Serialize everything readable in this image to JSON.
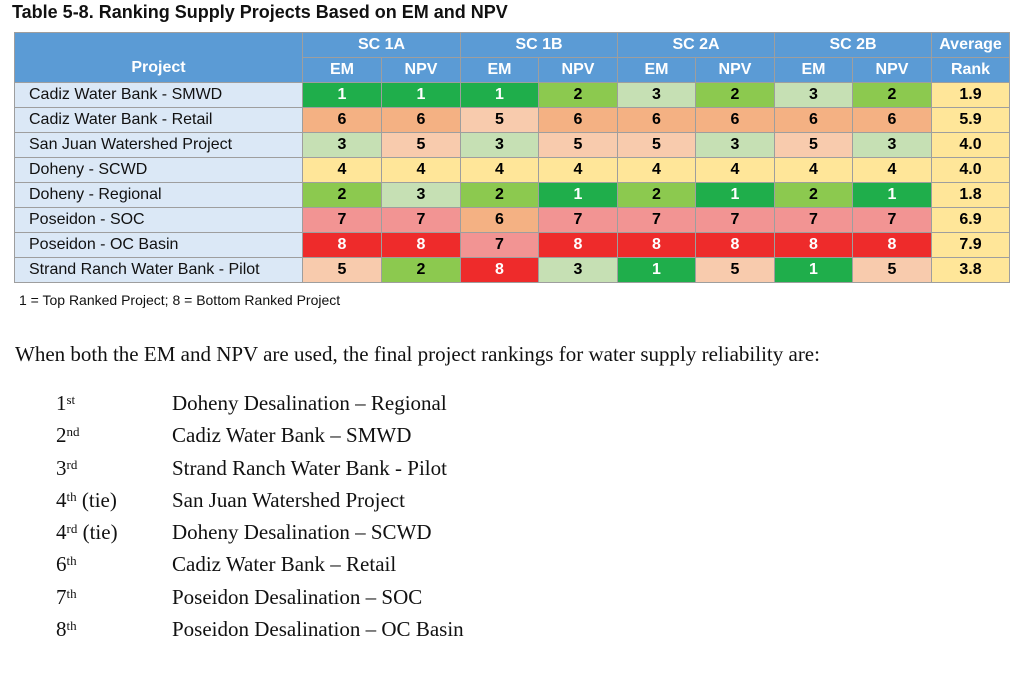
{
  "caption": "Table 5-8. Ranking Supply Projects Based on EM and NPV",
  "colors": {
    "header_blue": "#5b9bd5",
    "project_cell": "#dbe8f6",
    "rank_1": "#1fae4b",
    "rank_2": "#8cc94f",
    "rank_3": "#c6e0b4",
    "rank_4": "#ffe699",
    "rank_5": "#f8cbad",
    "rank_6": "#f4b183",
    "rank_7": "#f29493",
    "rank_8": "#ee2b2b",
    "avg_bg": "#ffe699"
  },
  "table": {
    "project_header": "Project",
    "groups": [
      "SC 1A",
      "SC 1B",
      "SC 2A",
      "SC 2B"
    ],
    "sub_headers": [
      "EM",
      "NPV"
    ],
    "avg_header_line1": "Average",
    "avg_header_line2": "Rank",
    "rows": [
      {
        "project": "Cadiz Water Bank - SMWD",
        "values": [
          1,
          1,
          1,
          2,
          3,
          2,
          3,
          2
        ],
        "average": "1.9"
      },
      {
        "project": "Cadiz Water Bank - Retail",
        "values": [
          6,
          6,
          5,
          6,
          6,
          6,
          6,
          6
        ],
        "average": "5.9"
      },
      {
        "project": "San Juan Watershed Project",
        "values": [
          3,
          5,
          3,
          5,
          5,
          3,
          5,
          3
        ],
        "average": "4.0"
      },
      {
        "project": "Doheny - SCWD",
        "values": [
          4,
          4,
          4,
          4,
          4,
          4,
          4,
          4
        ],
        "average": "4.0"
      },
      {
        "project": "Doheny - Regional",
        "values": [
          2,
          3,
          2,
          1,
          2,
          1,
          2,
          1
        ],
        "average": "1.8"
      },
      {
        "project": "Poseidon - SOC",
        "values": [
          7,
          7,
          6,
          7,
          7,
          7,
          7,
          7
        ],
        "average": "6.9"
      },
      {
        "project": "Poseidon - OC Basin",
        "values": [
          8,
          8,
          7,
          8,
          8,
          8,
          8,
          8
        ],
        "average": "7.9"
      },
      {
        "project": "Strand Ranch Water Bank - Pilot",
        "values": [
          5,
          2,
          8,
          3,
          1,
          5,
          1,
          5
        ],
        "average": "3.8"
      }
    ]
  },
  "footnote": "1 = Top Ranked Project; 8 = Bottom Ranked Project",
  "intro": "When both the EM and NPV are used, the final project rankings for water supply reliability are:",
  "final_rankings": [
    {
      "num": "1",
      "suffix": "st",
      "tie": "",
      "name": "Doheny Desalination – Regional"
    },
    {
      "num": "2",
      "suffix": "nd",
      "tie": "",
      "name": "Cadiz Water Bank – SMWD"
    },
    {
      "num": "3",
      "suffix": "rd",
      "tie": "",
      "name": "Strand Ranch Water Bank - Pilot"
    },
    {
      "num": "4",
      "suffix": "th",
      "tie": " (tie)",
      "name": "San Juan Watershed Project"
    },
    {
      "num": "4",
      "suffix": "rd",
      "tie": " (tie)",
      "name": "Doheny Desalination – SCWD"
    },
    {
      "num": "6",
      "suffix": "th",
      "tie": "",
      "name": "Cadiz Water Bank – Retail"
    },
    {
      "num": "7",
      "suffix": "th",
      "tie": "",
      "name": "Poseidon Desalination – SOC"
    },
    {
      "num": "8",
      "suffix": "th",
      "tie": "",
      "name": "Poseidon Desalination – OC Basin"
    }
  ]
}
